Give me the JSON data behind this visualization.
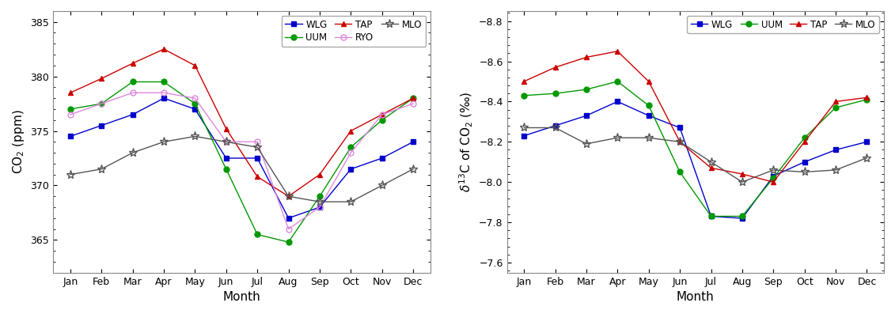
{
  "months": [
    "Jan",
    "Feb",
    "Mar",
    "Apr",
    "May",
    "Jun",
    "Jul",
    "Aug",
    "Sep",
    "Oct",
    "Nov",
    "Dec"
  ],
  "co2": {
    "WLG": [
      374.5,
      375.5,
      376.5,
      378.0,
      377.0,
      372.5,
      372.5,
      367.0,
      368.0,
      371.5,
      372.5,
      374.0
    ],
    "UUM": [
      377.0,
      377.5,
      379.5,
      379.5,
      377.5,
      371.5,
      365.5,
      364.8,
      369.0,
      373.5,
      376.0,
      378.0
    ],
    "TAP": [
      378.5,
      379.8,
      381.2,
      382.5,
      381.0,
      375.2,
      370.8,
      369.0,
      371.0,
      375.0,
      376.5,
      378.0
    ],
    "RYO": [
      376.5,
      377.5,
      378.5,
      378.5,
      378.0,
      374.0,
      374.0,
      366.0,
      368.0,
      373.0,
      376.5,
      377.5
    ],
    "MLO": [
      371.0,
      371.5,
      373.0,
      374.0,
      374.5,
      374.0,
      373.5,
      369.0,
      368.5,
      368.5,
      370.0,
      371.5
    ]
  },
  "d13c": {
    "WLG": [
      -8.23,
      -8.28,
      -8.33,
      -8.4,
      -8.33,
      -8.27,
      -7.83,
      -7.82,
      -8.03,
      -8.1,
      -8.16,
      -8.2
    ],
    "UUM": [
      -8.43,
      -8.44,
      -8.46,
      -8.5,
      -8.38,
      -8.05,
      -7.83,
      -7.83,
      -8.02,
      -8.22,
      -8.37,
      -8.41
    ],
    "TAP": [
      -8.5,
      -8.57,
      -8.62,
      -8.65,
      -8.5,
      -8.2,
      -8.07,
      -8.04,
      -8.0,
      -8.2,
      -8.4,
      -8.42
    ],
    "MLO": [
      -8.27,
      -8.27,
      -8.19,
      -8.22,
      -8.22,
      -8.2,
      -8.1,
      -8.0,
      -8.06,
      -8.05,
      -8.06,
      -8.12
    ]
  },
  "co2_ylim": [
    362,
    386
  ],
  "co2_yticks": [
    365,
    370,
    375,
    380,
    385
  ],
  "d13c_ylim": [
    -8.85,
    -7.55
  ],
  "d13c_yticks": [
    -8.8,
    -8.6,
    -8.4,
    -8.2,
    -8.0,
    -7.8,
    -7.6
  ],
  "colors": {
    "WLG": "#0000cc",
    "UUM": "#009900",
    "TAP": "#cc0000",
    "RYO": "#dd88dd",
    "MLO": "#555555"
  },
  "markers_co2": {
    "WLG": "s",
    "UUM": "o",
    "TAP": "^",
    "RYO": "o",
    "MLO": "*"
  },
  "markerfacecolors_co2": {
    "WLG": "#0000cc",
    "UUM": "#009900",
    "TAP": "#cc0000",
    "RYO": "none",
    "MLO": "none"
  },
  "markers_d13c": {
    "WLG": "s",
    "UUM": "o",
    "TAP": "^",
    "MLO": "*"
  },
  "markerfacecolors_d13c": {
    "WLG": "#0000cc",
    "UUM": "#009900",
    "TAP": "#cc0000",
    "MLO": "none"
  },
  "xlabel": "Month",
  "co2_ylabel": "CO$_2$ (ppm)",
  "d13c_ylabel": "$\\delta^{13}$C of CO$_2$ (‰)"
}
